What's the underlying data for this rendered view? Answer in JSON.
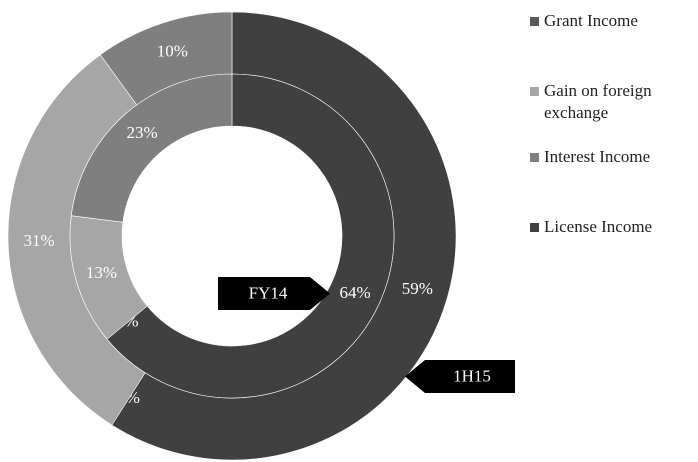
{
  "chart_data": {
    "type": "donut",
    "categories": [
      "Grant Income",
      "Gain on foreign exchange",
      "Interest Income",
      "License Income"
    ],
    "colors": [
      "#595959",
      "#a6a6a6",
      "#7f7f7f",
      "#404040"
    ],
    "series": [
      {
        "name": "1H15",
        "values": [
          0,
          31,
          10,
          59
        ],
        "value_labels": [
          "0%",
          "31%",
          "10%",
          "59%"
        ]
      },
      {
        "name": "FY14",
        "values": [
          0,
          13,
          23,
          64
        ],
        "value_labels": [
          "0%",
          "13%",
          "23%",
          "64%"
        ]
      }
    ],
    "legend": "right"
  }
}
